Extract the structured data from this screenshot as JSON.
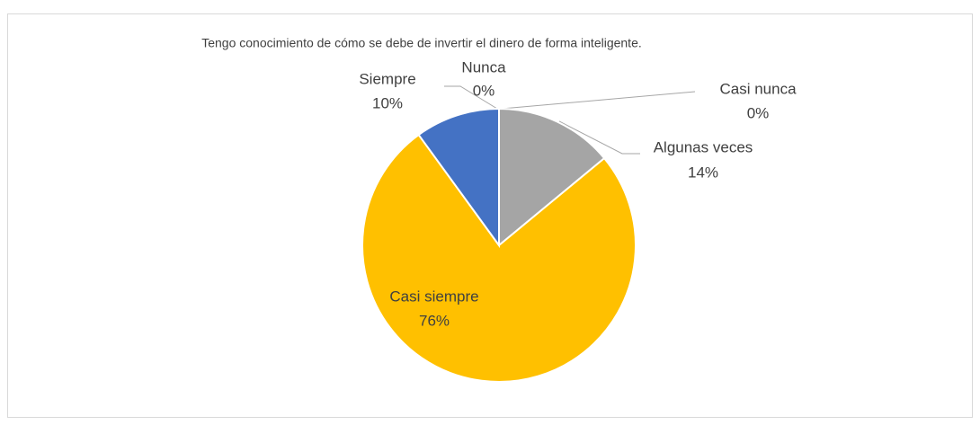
{
  "chart_data": {
    "type": "pie",
    "title": "Tengo conocimiento de cómo se debe de invertir el dinero de forma inteligente.",
    "categories": [
      "Nunca",
      "Casi nunca",
      "Algunas veces",
      "Casi siempre",
      "Siempre"
    ],
    "values": [
      0,
      0,
      14,
      76,
      10
    ],
    "value_labels": [
      "0%",
      "0%",
      "14%",
      "76%",
      "10%"
    ],
    "colors": [
      "#5b9bd5",
      "#ed7d31",
      "#a5a5a5",
      "#ffc000",
      "#4472c4"
    ]
  }
}
